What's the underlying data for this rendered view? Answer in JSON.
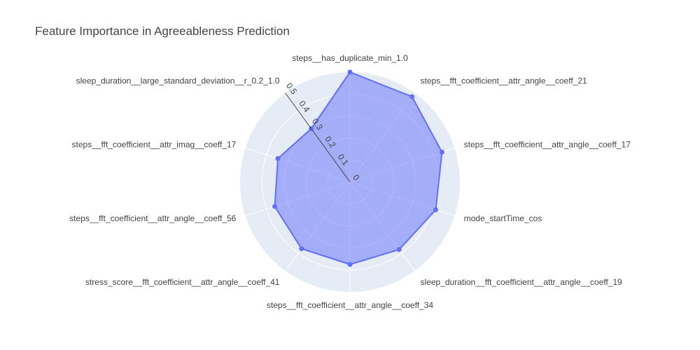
{
  "chart_data": {
    "type": "radar",
    "title": "Feature Importance in Agreeableness Prediction",
    "categories": [
      "steps__has_duplicate_min_1.0",
      "steps__fft_coefficient__attr_angle__coeff_21",
      "steps__fft_coefficient__attr_angle__coeff_17",
      "mode_startTime_cos",
      "sleep_duration__fft_coefficient__attr_angle__coeff_19",
      "steps__fft_coefficient__attr_angle__coeff_34",
      "stress_score__fft_coefficient__attr_angle__coeff_41",
      "steps__fft_coefficient__attr_angle__coeff_56",
      "steps__fft_coefficient__attr_imag__coeff_17",
      "sleep_duration__large_standard_deviation__r_0.2_1.0"
    ],
    "values": [
      0.5,
      0.48,
      0.44,
      0.41,
      0.38,
      0.375,
      0.375,
      0.36,
      0.345,
      0.3
    ],
    "radial_ticks": [
      "0",
      "0.1",
      "0.2",
      "0.3",
      "0.4",
      "0.5"
    ],
    "radial_range": [
      0,
      0.5
    ],
    "fill_color": "#636efa",
    "background_color": "#e5ecf6",
    "grid": true
  }
}
